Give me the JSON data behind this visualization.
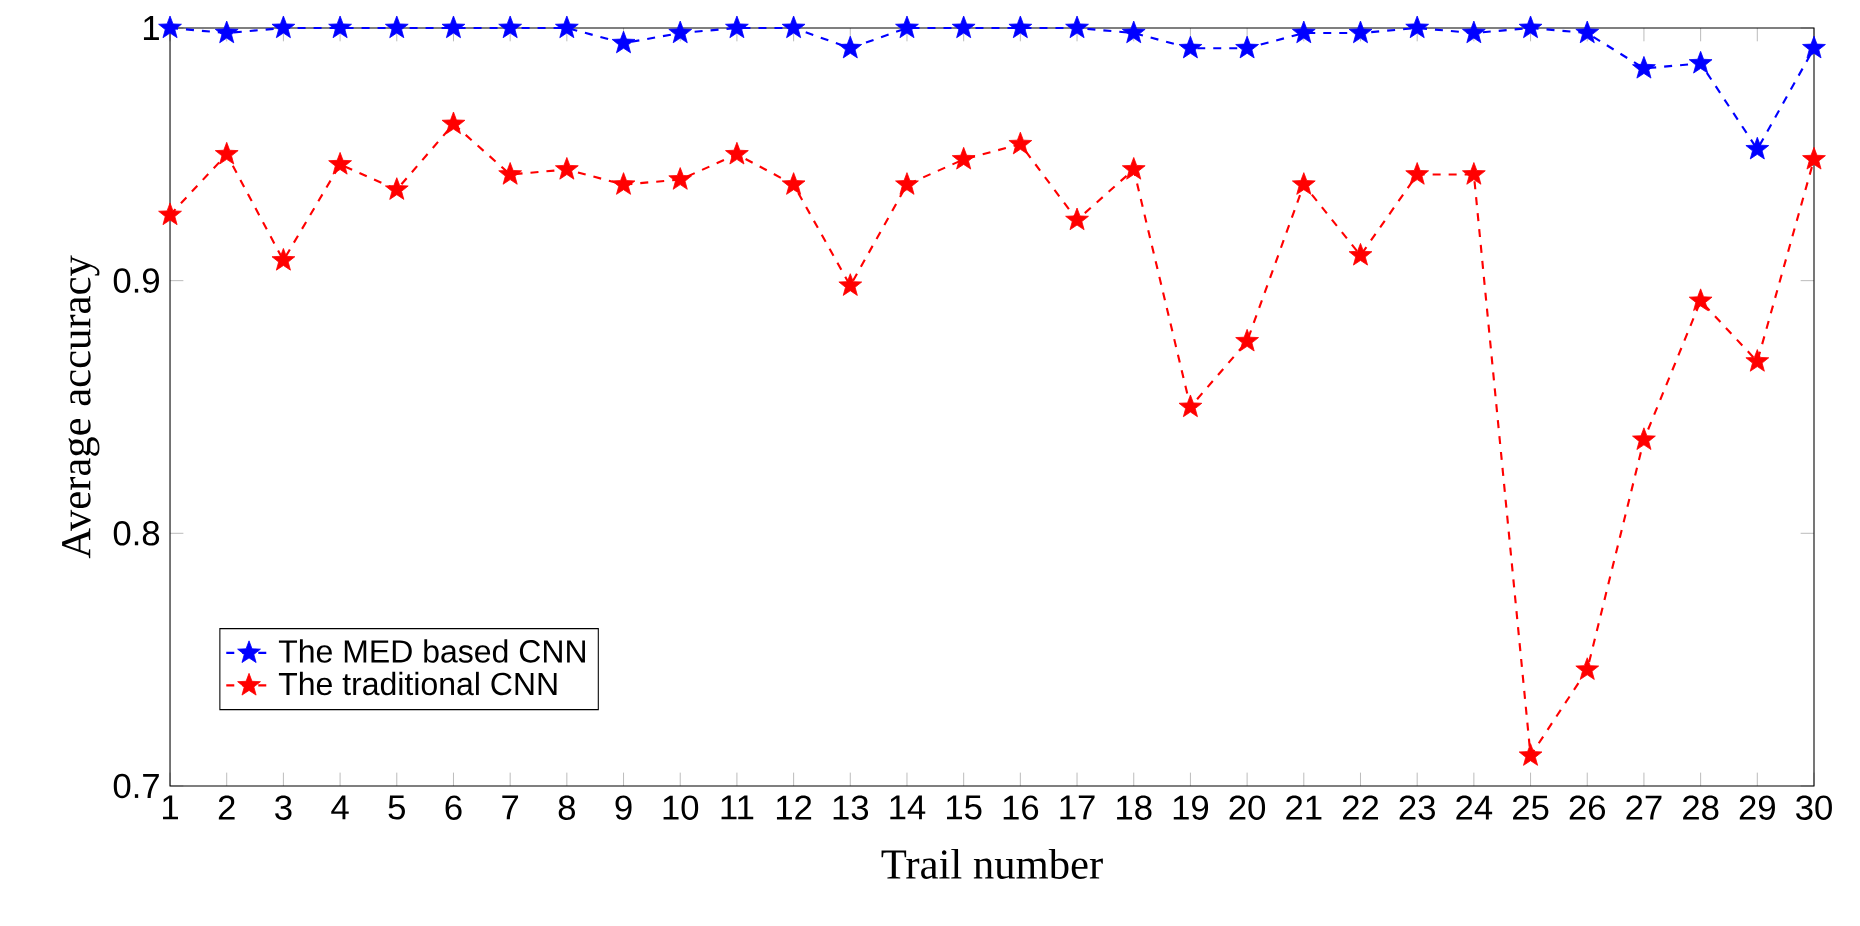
{
  "chart_data": {
    "type": "line",
    "xlabel": "Trail number",
    "ylabel": "Average accuracy",
    "x": [
      1,
      2,
      3,
      4,
      5,
      6,
      7,
      8,
      9,
      10,
      11,
      12,
      13,
      14,
      15,
      16,
      17,
      18,
      19,
      20,
      21,
      22,
      23,
      24,
      25,
      26,
      27,
      28,
      29,
      30
    ],
    "series": [
      {
        "name": "The MED based CNN",
        "color": "#0000ff",
        "values": [
          1,
          0.998,
          1,
          1,
          1,
          1,
          1,
          1,
          0.994,
          0.998,
          1,
          1,
          0.992,
          1,
          1,
          1,
          1,
          0.998,
          0.992,
          0.992,
          0.998,
          0.998,
          1,
          0.998,
          1,
          0.998,
          0.984,
          0.986,
          0.952,
          0.992
        ]
      },
      {
        "name": "The traditional CNN",
        "color": "#ff0000",
        "values": [
          0.926,
          0.95,
          0.908,
          0.946,
          0.936,
          0.962,
          0.942,
          0.944,
          0.938,
          0.94,
          0.95,
          0.938,
          0.898,
          0.938,
          0.948,
          0.954,
          0.924,
          0.944,
          0.85,
          0.876,
          0.938,
          0.91,
          0.942,
          0.942,
          0.712,
          0.746,
          0.837,
          0.892,
          0.868,
          0.948
        ]
      }
    ],
    "xlim": [
      1,
      30
    ],
    "xticks": [
      1,
      2,
      3,
      4,
      5,
      6,
      7,
      8,
      9,
      10,
      11,
      12,
      13,
      14,
      15,
      16,
      17,
      18,
      19,
      20,
      21,
      22,
      23,
      24,
      25,
      26,
      27,
      28,
      29,
      30
    ],
    "ylim": [
      0.7,
      1
    ],
    "yticks": [
      0.7,
      0.8,
      0.9,
      1
    ],
    "grid": false,
    "legend": "bottom left",
    "marker": "star",
    "line_style": "dashed"
  }
}
